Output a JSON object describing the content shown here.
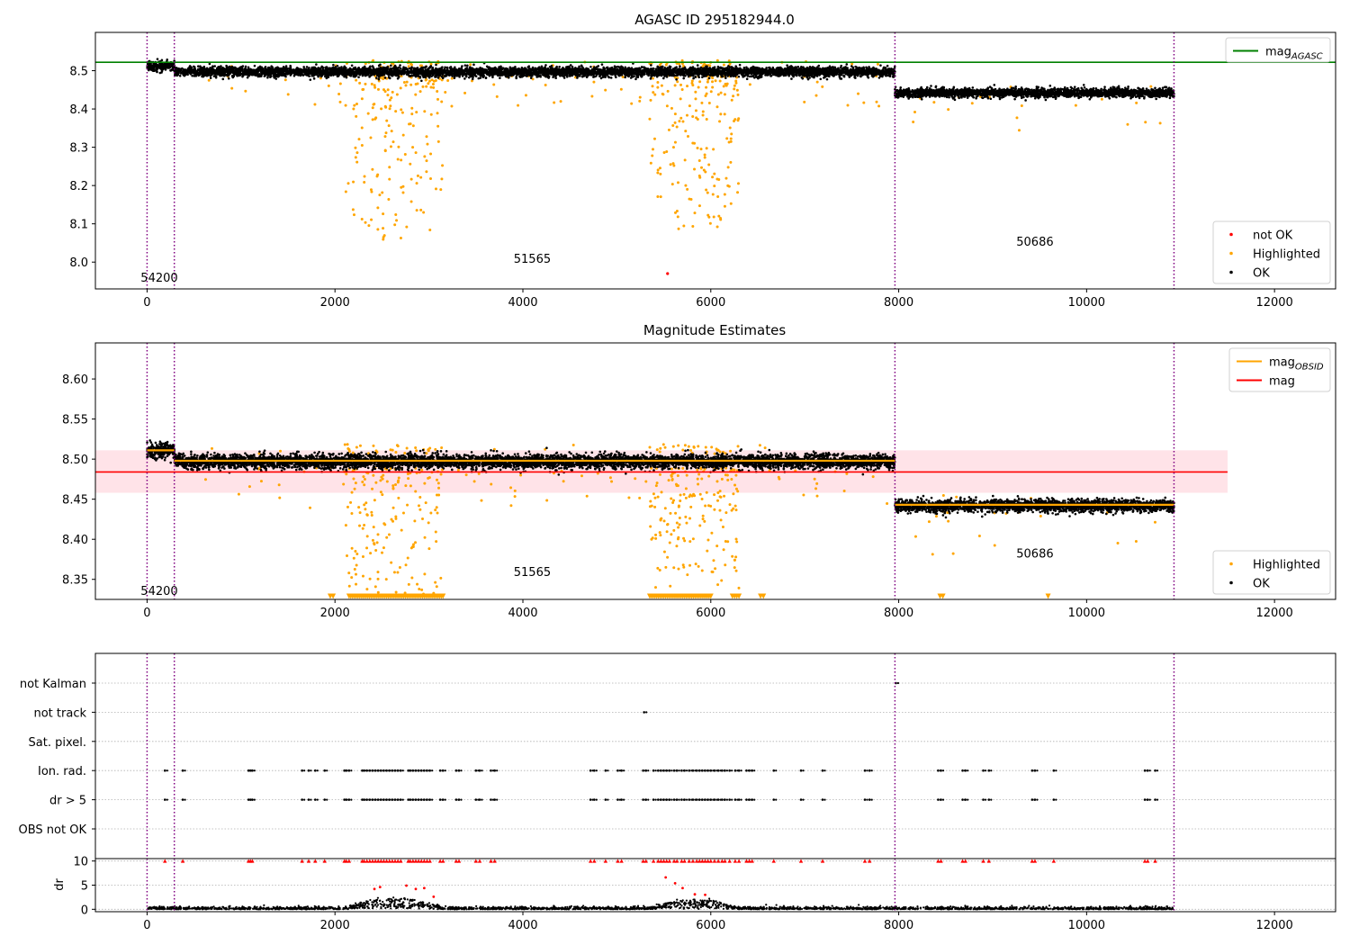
{
  "chart_data": [
    {
      "id": "top",
      "type": "scatter",
      "title": "AGASC ID 295182944.0",
      "xlim": [
        -550,
        12650
      ],
      "ylim": [
        7.93,
        8.6
      ],
      "xticks": [
        0,
        2000,
        4000,
        6000,
        8000,
        10000,
        12000
      ],
      "yticks": [
        8.0,
        8.1,
        8.2,
        8.3,
        8.4,
        8.5
      ],
      "ytick_labels": [
        "8.0",
        "8.1",
        "8.2",
        "8.3",
        "8.4",
        "8.5"
      ],
      "grid": false,
      "obs_boundaries": [
        0,
        290,
        7960,
        10930
      ],
      "annotations": [
        {
          "text": "54200",
          "x": 130,
          "y": 7.96
        },
        {
          "text": "51565",
          "x": 4100,
          "y": 8.01
        },
        {
          "text": "50686",
          "x": 9450,
          "y": 8.055
        }
      ],
      "reference_lines": [
        {
          "name": "mag",
          "subscript": "AGASC",
          "color": "#008000",
          "y": 8.522,
          "x0": -550,
          "x1": 12650
        }
      ],
      "segments": [
        {
          "x0": 0,
          "x1": 290,
          "center": 8.512,
          "spread": 0.012
        },
        {
          "x0": 290,
          "x1": 7960,
          "center": 8.497,
          "spread": 0.011
        },
        {
          "x0": 7960,
          "x1": 10930,
          "center": 8.442,
          "spread": 0.01
        }
      ],
      "highlight_clusters": [
        {
          "x0": 2100,
          "x1": 3150,
          "n": 160,
          "depth": 0.45
        },
        {
          "x0": 5350,
          "x1": 6300,
          "n": 170,
          "depth": 0.4
        },
        {
          "x0": 600,
          "x1": 7900,
          "n": 70,
          "depth": 0.08
        },
        {
          "x0": 8100,
          "x1": 10900,
          "n": 18,
          "depth": 0.1
        }
      ],
      "not_ok_points": [
        [
          5540,
          7.97
        ]
      ],
      "legend_upper": {
        "placement": "top-right",
        "entries": [
          {
            "label": "mag",
            "subscript": "AGASC",
            "color": "#008000",
            "marker": "line"
          }
        ]
      },
      "legend_lower": {
        "placement": "bottom-right",
        "entries": [
          {
            "label": "not OK",
            "color": "#ff0000",
            "marker": "dot"
          },
          {
            "label": "Highlighted",
            "color": "#ffa500",
            "marker": "dot"
          },
          {
            "label": "OK",
            "color": "#000000",
            "marker": "dot"
          }
        ]
      }
    },
    {
      "id": "middle",
      "type": "scatter",
      "title": "Magnitude Estimates",
      "xlim": [
        -550,
        12650
      ],
      "ylim": [
        8.325,
        8.645
      ],
      "xticks": [
        0,
        2000,
        4000,
        6000,
        8000,
        10000,
        12000
      ],
      "yticks": [
        8.35,
        8.4,
        8.45,
        8.5,
        8.55,
        8.6
      ],
      "ytick_labels": [
        "8.35",
        "8.40",
        "8.45",
        "8.50",
        "8.55",
        "8.60"
      ],
      "grid": false,
      "obs_boundaries": [
        0,
        290,
        7960,
        10930
      ],
      "annotations": [
        {
          "text": "54200",
          "x": 130,
          "y": 8.336
        },
        {
          "text": "51565",
          "x": 4100,
          "y": 8.36
        },
        {
          "text": "50686",
          "x": 9450,
          "y": 8.383
        }
      ],
      "mag": {
        "name": "mag",
        "color": "#ff0000",
        "y": 8.484,
        "band": [
          8.458,
          8.511
        ],
        "band_color": "#ffc0cb",
        "x0": -550,
        "x1": 11500
      },
      "mag_obsid": [
        {
          "x0": 0,
          "x1": 290,
          "y": 8.511
        },
        {
          "x0": 290,
          "x1": 7960,
          "y": 8.498
        },
        {
          "x0": 7960,
          "x1": 10930,
          "y": 8.443
        }
      ],
      "segments": [
        {
          "x0": 0,
          "x1": 290,
          "center": 8.511,
          "spread": 0.009
        },
        {
          "x0": 290,
          "x1": 7960,
          "center": 8.497,
          "spread": 0.008
        },
        {
          "x0": 7960,
          "x1": 10930,
          "center": 8.442,
          "spread": 0.007
        }
      ],
      "highlight_clusters": [
        {
          "x0": 2100,
          "x1": 3150,
          "n": 160,
          "depth": 0.16
        },
        {
          "x0": 5350,
          "x1": 6300,
          "n": 170,
          "depth": 0.15
        },
        {
          "x0": 600,
          "x1": 7900,
          "n": 70,
          "depth": 0.05
        },
        {
          "x0": 8100,
          "x1": 10900,
          "n": 18,
          "depth": 0.06
        }
      ],
      "clipped_markers": {
        "y": 8.329,
        "ranges": [
          [
            1950,
            1980
          ],
          [
            2150,
            3150
          ],
          [
            5350,
            6000
          ],
          [
            6230,
            6300
          ],
          [
            6530,
            6560
          ],
          [
            8440,
            8470
          ],
          [
            9580,
            9600
          ]
        ]
      },
      "legend_upper": {
        "placement": "top-right",
        "entries": [
          {
            "label": "mag",
            "subscript": "OBSID",
            "color": "#ffa500",
            "marker": "line"
          },
          {
            "label": "mag",
            "subscript": "",
            "color": "#ff0000",
            "marker": "line"
          }
        ]
      },
      "legend_lower": {
        "placement": "bottom-right",
        "entries": [
          {
            "label": "Highlighted",
            "color": "#ffa500",
            "marker": "dot"
          },
          {
            "label": "OK",
            "color": "#000000",
            "marker": "dot"
          }
        ]
      }
    },
    {
      "id": "flags",
      "type": "scatter",
      "xlim": [
        -550,
        12650
      ],
      "xticks": [],
      "categories": [
        "not Kalman",
        "not track",
        "Sat. pixel.",
        "Ion. rad.",
        "dr > 5",
        "OBS not OK"
      ],
      "grid": true,
      "obs_boundaries": [
        0,
        290,
        7960,
        10930
      ],
      "flag_points": {
        "not Kalman": [
          7970
        ],
        "not track": [
          5290
        ],
        "Sat. pixel.": [],
        "Ion. rad.": [
          190,
          380,
          1080,
          1100,
          1120,
          1650,
          1720,
          1790,
          1890,
          2100,
          2120,
          2150,
          2290,
          2310,
          2340,
          2370,
          2400,
          2430,
          2460,
          2490,
          2520,
          2550,
          2580,
          2610,
          2640,
          2670,
          2700,
          2780,
          2800,
          2830,
          2860,
          2890,
          2920,
          2950,
          2980,
          3010,
          3120,
          3150,
          3290,
          3320,
          3500,
          3540,
          3660,
          3700,
          4720,
          4760,
          4880,
          5010,
          5050,
          5280,
          5310,
          5390,
          5440,
          5470,
          5500,
          5530,
          5560,
          5610,
          5640,
          5690,
          5720,
          5770,
          5810,
          5850,
          5880,
          5910,
          5940,
          5970,
          6000,
          6040,
          6080,
          6120,
          6150,
          6200,
          6260,
          6300,
          6380,
          6410,
          6440,
          6670,
          6960,
          7190,
          7640,
          7690,
          8420,
          8450,
          8680,
          8710,
          8900,
          8960,
          9420,
          9450,
          9650,
          10620,
          10650,
          10730
        ],
        "dr > 5": [
          190,
          380,
          1080,
          1100,
          1120,
          1650,
          1720,
          1790,
          1890,
          2100,
          2120,
          2150,
          2290,
          2310,
          2340,
          2370,
          2400,
          2430,
          2460,
          2490,
          2520,
          2550,
          2580,
          2610,
          2640,
          2670,
          2700,
          2780,
          2800,
          2830,
          2860,
          2890,
          2920,
          2950,
          2980,
          3010,
          3120,
          3150,
          3290,
          3320,
          3500,
          3540,
          3660,
          3700,
          4720,
          4760,
          4880,
          5010,
          5050,
          5280,
          5310,
          5390,
          5440,
          5470,
          5500,
          5530,
          5560,
          5610,
          5640,
          5690,
          5720,
          5770,
          5810,
          5850,
          5880,
          5910,
          5940,
          5970,
          6000,
          6040,
          6080,
          6120,
          6150,
          6200,
          6260,
          6300,
          6380,
          6410,
          6440,
          6670,
          6960,
          7190,
          7640,
          7690,
          8420,
          8450,
          8680,
          8710,
          8900,
          8960,
          9420,
          9450,
          9650,
          10620,
          10650,
          10730
        ],
        "OBS not OK": []
      }
    },
    {
      "id": "dr",
      "type": "scatter",
      "ylabel": "dr",
      "xlim": [
        -550,
        12650
      ],
      "ylim": [
        -0.5,
        10.5
      ],
      "xticks": [
        0,
        2000,
        4000,
        6000,
        8000,
        10000,
        12000
      ],
      "yticks": [
        0,
        5,
        10
      ],
      "ytick_labels": [
        "0",
        "5",
        "10"
      ],
      "grid": true,
      "obs_boundaries": [
        0,
        290,
        7960,
        10930
      ],
      "base_range": [
        0,
        10930
      ],
      "bumps": [
        {
          "x0": 2100,
          "x1": 3150,
          "peak": 2.2
        },
        {
          "x0": 5350,
          "x1": 6300,
          "peak": 2.0
        }
      ],
      "outliers": [
        [
          2420,
          4.2
        ],
        [
          2480,
          4.6
        ],
        [
          2760,
          4.9
        ],
        [
          2860,
          4.2
        ],
        [
          2950,
          4.4
        ],
        [
          5520,
          6.6
        ],
        [
          5620,
          5.4
        ],
        [
          5700,
          4.4
        ],
        [
          5830,
          3.1
        ],
        [
          5940,
          3.0
        ],
        [
          3050,
          2.6
        ]
      ],
      "capped_y": 10
    }
  ]
}
